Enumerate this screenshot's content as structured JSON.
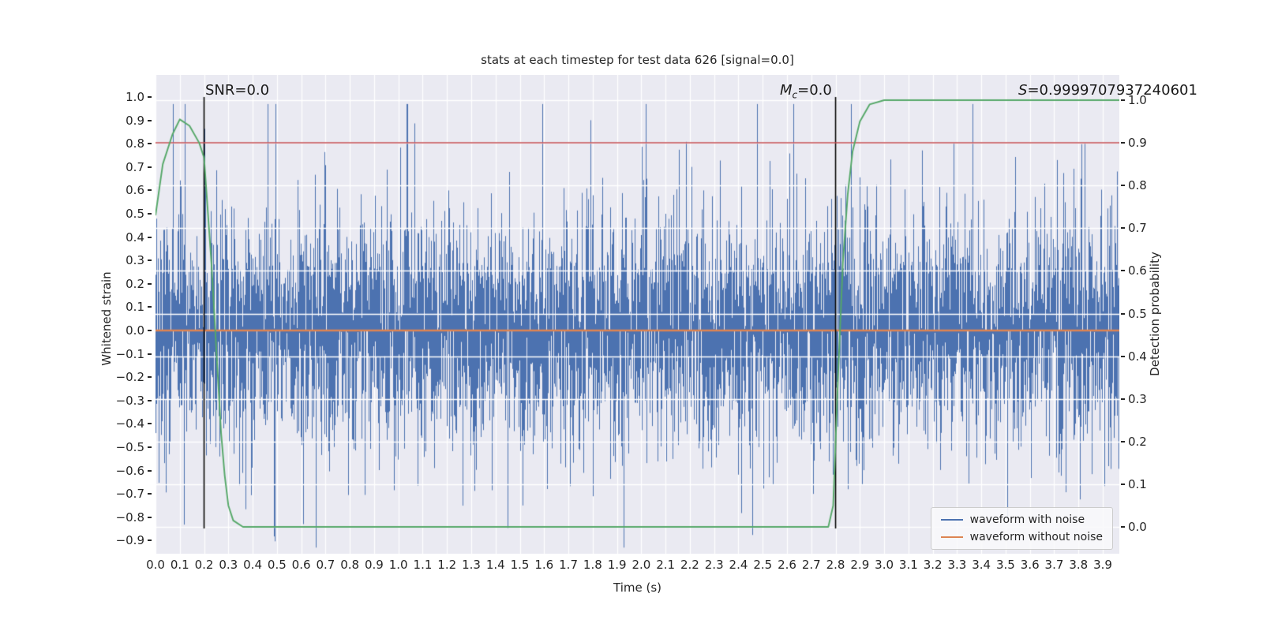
{
  "figure": {
    "title": "stats at each timestep for test data 626 [signal=0.0]",
    "xlabel": "Time (s)",
    "ylabel_left": "Whitened strain",
    "ylabel_right": "Detection probability"
  },
  "annotations": {
    "snr": "SNR=0.0",
    "mc_var": "M",
    "mc_sub": "c",
    "mc_rest": "=0.0",
    "s_var": "S",
    "s_rest": "=0.9999707937240601"
  },
  "axes": {
    "x_ticks": [
      "0.0",
      "0.1",
      "0.2",
      "0.3",
      "0.4",
      "0.5",
      "0.6",
      "0.7",
      "0.8",
      "0.9",
      "1.0",
      "1.1",
      "1.2",
      "1.3",
      "1.4",
      "1.5",
      "1.6",
      "1.7",
      "1.8",
      "1.9",
      "2.0",
      "2.1",
      "2.2",
      "2.3",
      "2.4",
      "2.5",
      "2.6",
      "2.7",
      "2.8",
      "2.9",
      "3.0",
      "3.1",
      "3.2",
      "3.3",
      "3.4",
      "3.5",
      "3.6",
      "3.7",
      "3.8",
      "3.9"
    ],
    "left_ticks": [
      "1.0",
      "0.9",
      "0.8",
      "0.7",
      "0.6",
      "0.5",
      "0.4",
      "0.3",
      "0.2",
      "0.1",
      "0.0",
      "−0.1",
      "−0.2",
      "−0.3",
      "−0.4",
      "−0.5",
      "−0.6",
      "−0.7",
      "−0.8",
      "−0.9"
    ],
    "right_ticks": [
      "1.0",
      "0.9",
      "0.8",
      "0.7",
      "0.6",
      "0.5",
      "0.4",
      "0.3",
      "0.2",
      "0.1",
      "0.0"
    ]
  },
  "legend": {
    "items": [
      {
        "label": "waveform with noise",
        "color": "#4c72b0"
      },
      {
        "label": "waveform without noise",
        "color": "#dd8452"
      }
    ]
  },
  "colors": {
    "plot_background": "#eaeaf2",
    "grid": "#ffffff",
    "noise_waveform": "#4c72b0",
    "clean_waveform": "#dd8452",
    "detection_probability": "#55a868",
    "threshold": "#c44e52",
    "vline": "#000000",
    "text": "#262626"
  },
  "chart_data": {
    "type": "line",
    "title": "stats at each timestep for test data 626 [signal=0.0]",
    "xlabel": "Time (s)",
    "ylabel_left": "Whitened strain",
    "ylabel_right": "Detection probability",
    "xlim": [
      0.0,
      3.97
    ],
    "ylim_left": [
      -0.956,
      1.095
    ],
    "ylim_right": [
      -0.063,
      1.059
    ],
    "grid": true,
    "legend_position": "lower right",
    "signal": 0.0,
    "snr": 0.0,
    "chirp_mass": 0.0,
    "max_detection_statistic": 0.9999707937240601,
    "threshold_right_axis": 0.9,
    "vlines_x": [
      0.2,
      2.8
    ],
    "series": [
      {
        "name": "waveform with noise",
        "axis": "left",
        "color": "#4c72b0",
        "kind": "random-noise",
        "mean": 0.0,
        "std": 0.23,
        "spike_prob": 0.08,
        "spike_std": 0.45,
        "clip": [
          -0.93,
          0.97
        ],
        "seed": 626
      },
      {
        "name": "waveform without noise",
        "axis": "left",
        "color": "#dd8452",
        "kind": "constant",
        "value": 0.0
      },
      {
        "name": "detection probability",
        "axis": "right",
        "color": "#55a868",
        "kind": "points",
        "points": [
          [
            0.0,
            0.73
          ],
          [
            0.03,
            0.85
          ],
          [
            0.07,
            0.92
          ],
          [
            0.1,
            0.955
          ],
          [
            0.14,
            0.94
          ],
          [
            0.18,
            0.9
          ],
          [
            0.2,
            0.865
          ],
          [
            0.23,
            0.62
          ],
          [
            0.25,
            0.42
          ],
          [
            0.27,
            0.22
          ],
          [
            0.285,
            0.12
          ],
          [
            0.3,
            0.05
          ],
          [
            0.32,
            0.015
          ],
          [
            0.36,
            0.0
          ],
          [
            2.77,
            0.0
          ],
          [
            2.79,
            0.05
          ],
          [
            2.81,
            0.35
          ],
          [
            2.83,
            0.62
          ],
          [
            2.85,
            0.78
          ],
          [
            2.87,
            0.88
          ],
          [
            2.9,
            0.95
          ],
          [
            2.94,
            0.99
          ],
          [
            3.0,
            1.0
          ],
          [
            3.97,
            1.0
          ]
        ]
      },
      {
        "name": "threshold",
        "axis": "right",
        "color": "#c44e52",
        "kind": "hline",
        "value": 0.9
      }
    ]
  }
}
